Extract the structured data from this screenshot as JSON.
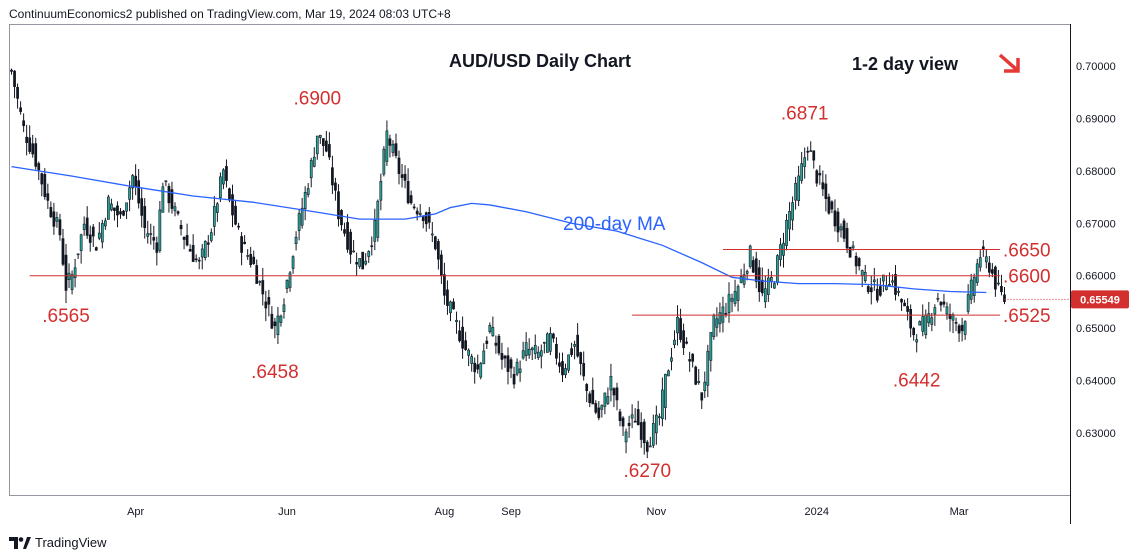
{
  "header": {
    "publisher": "ContinuumEconomics2 published on TradingView.com, Mar 19, 2024 08:03 UTC+8"
  },
  "footer": {
    "brand": "TradingView"
  },
  "colors": {
    "up": "#26a69a",
    "down": "#26a69a",
    "candle_body": "#131722",
    "ma": "#2962ff",
    "level": "#d32f2f",
    "label": "#d32f2f",
    "arrow": "#e53935",
    "price_box": "#d32f2f"
  },
  "chart_data": {
    "type": "candlestick",
    "title": "AUD/USD Daily Chart",
    "subtitle": "1-2 day view",
    "xlabel": "",
    "ylabel": "",
    "ylim": [
      0.618,
      0.708
    ],
    "yticks": [
      "0.70000",
      "0.69000",
      "0.68000",
      "0.67000",
      "0.66000",
      "0.65000",
      "0.64000",
      "0.63000"
    ],
    "ytick_values": [
      0.7,
      0.69,
      0.68,
      0.67,
      0.66,
      0.65,
      0.64,
      0.63
    ],
    "xticks": [
      "Apr",
      "Jun",
      "Aug",
      "Sep",
      "Nov",
      "2024",
      "Mar"
    ],
    "xtick_index": [
      41,
      91,
      143,
      165,
      213,
      266,
      313
    ],
    "last_price": "0.65549",
    "last_price_value": 0.65549,
    "ma_label": "200-day MA",
    "ma_series": [
      [
        0,
        0.6808
      ],
      [
        20,
        0.679
      ],
      [
        40,
        0.677
      ],
      [
        60,
        0.6752
      ],
      [
        80,
        0.674
      ],
      [
        100,
        0.6722
      ],
      [
        115,
        0.6708
      ],
      [
        130,
        0.6708
      ],
      [
        140,
        0.6718
      ],
      [
        145,
        0.673
      ],
      [
        152,
        0.6738
      ],
      [
        158,
        0.6735
      ],
      [
        170,
        0.6722
      ],
      [
        185,
        0.67
      ],
      [
        200,
        0.6685
      ],
      [
        215,
        0.6658
      ],
      [
        228,
        0.6625
      ],
      [
        238,
        0.6597
      ],
      [
        248,
        0.659
      ],
      [
        260,
        0.6585
      ],
      [
        272,
        0.6585
      ],
      [
        285,
        0.6583
      ],
      [
        298,
        0.6575
      ],
      [
        310,
        0.657
      ],
      [
        322,
        0.6568
      ]
    ],
    "levels": [
      {
        "label": ".6650",
        "value": 0.665,
        "from_index": 235
      },
      {
        "label": ".6600",
        "value": 0.66,
        "from_index": 6
      },
      {
        "label": ".6525",
        "value": 0.6525,
        "from_index": 205
      }
    ],
    "annotations": [
      {
        "label": ".6900",
        "index": 101,
        "value": 0.69
      },
      {
        "label": ".6871",
        "index": 262,
        "value": 0.6871
      },
      {
        "label": ".6565",
        "index": 18,
        "value": 0.6565
      },
      {
        "label": ".6458",
        "index": 87,
        "value": 0.6458
      },
      {
        "label": ".6270",
        "index": 210,
        "value": 0.627
      },
      {
        "label": ".6442",
        "index": 299,
        "value": 0.6442
      }
    ],
    "close_path": [
      [
        0,
        0.699
      ],
      [
        4,
        0.688
      ],
      [
        8,
        0.682
      ],
      [
        12,
        0.674
      ],
      [
        16,
        0.668
      ],
      [
        18,
        0.658
      ],
      [
        20,
        0.66
      ],
      [
        24,
        0.67
      ],
      [
        28,
        0.666
      ],
      [
        32,
        0.674
      ],
      [
        36,
        0.671
      ],
      [
        40,
        0.679
      ],
      [
        44,
        0.669
      ],
      [
        48,
        0.666
      ],
      [
        50,
        0.678
      ],
      [
        54,
        0.672
      ],
      [
        58,
        0.666
      ],
      [
        62,
        0.662
      ],
      [
        66,
        0.669
      ],
      [
        70,
        0.68
      ],
      [
        72,
        0.674
      ],
      [
        76,
        0.666
      ],
      [
        80,
        0.662
      ],
      [
        84,
        0.655
      ],
      [
        87,
        0.65
      ],
      [
        90,
        0.656
      ],
      [
        94,
        0.668
      ],
      [
        98,
        0.678
      ],
      [
        101,
        0.687
      ],
      [
        104,
        0.684
      ],
      [
        108,
        0.672
      ],
      [
        112,
        0.665
      ],
      [
        116,
        0.662
      ],
      [
        120,
        0.669
      ],
      [
        122,
        0.678
      ],
      [
        124,
        0.687
      ],
      [
        128,
        0.68
      ],
      [
        132,
        0.674
      ],
      [
        136,
        0.672
      ],
      [
        140,
        0.666
      ],
      [
        143,
        0.656
      ],
      [
        146,
        0.652
      ],
      [
        150,
        0.646
      ],
      [
        154,
        0.642
      ],
      [
        158,
        0.65
      ],
      [
        162,
        0.644
      ],
      [
        166,
        0.641
      ],
      [
        170,
        0.646
      ],
      [
        174,
        0.645
      ],
      [
        178,
        0.648
      ],
      [
        182,
        0.642
      ],
      [
        186,
        0.647
      ],
      [
        190,
        0.638
      ],
      [
        194,
        0.633
      ],
      [
        198,
        0.64
      ],
      [
        202,
        0.63
      ],
      [
        206,
        0.633
      ],
      [
        210,
        0.628
      ],
      [
        214,
        0.633
      ],
      [
        216,
        0.64
      ],
      [
        220,
        0.651
      ],
      [
        224,
        0.644
      ],
      [
        228,
        0.637
      ],
      [
        232,
        0.651
      ],
      [
        236,
        0.654
      ],
      [
        240,
        0.658
      ],
      [
        244,
        0.664
      ],
      [
        248,
        0.656
      ],
      [
        252,
        0.66
      ],
      [
        256,
        0.67
      ],
      [
        260,
        0.678
      ],
      [
        263,
        0.685
      ],
      [
        266,
        0.679
      ],
      [
        270,
        0.673
      ],
      [
        274,
        0.669
      ],
      [
        278,
        0.664
      ],
      [
        282,
        0.659
      ],
      [
        286,
        0.657
      ],
      [
        290,
        0.66
      ],
      [
        294,
        0.655
      ],
      [
        298,
        0.649
      ],
      [
        302,
        0.651
      ],
      [
        306,
        0.656
      ],
      [
        310,
        0.652
      ],
      [
        314,
        0.65
      ],
      [
        318,
        0.66
      ],
      [
        320,
        0.664
      ],
      [
        323,
        0.662
      ],
      [
        326,
        0.657
      ],
      [
        328,
        0.6555
      ]
    ],
    "candle_count": 329
  },
  "price_axis": {
    "label_x": 1078
  }
}
